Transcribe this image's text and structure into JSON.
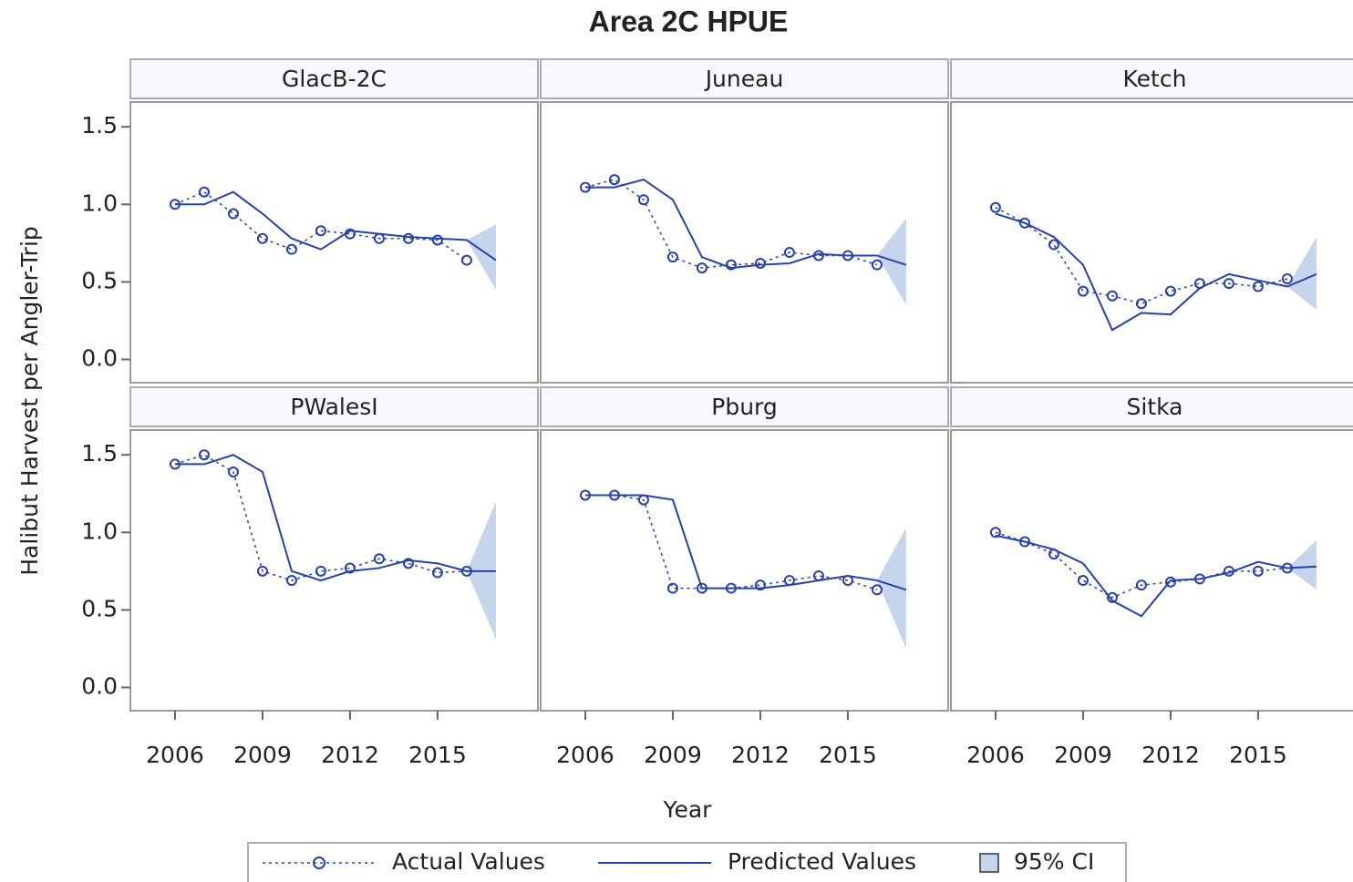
{
  "chart_data": {
    "type": "line",
    "title": "Area 2C HPUE",
    "x_label": "Year",
    "y_label": "Halibut Harvest per Angler-Trip",
    "xlim": [
      2004.47,
      2018.44
    ],
    "ylim": [
      -0.15,
      1.66
    ],
    "xticks": [
      2006,
      2009,
      2012,
      2015
    ],
    "yticks": [
      {
        "value": 0,
        "label": "0.0"
      },
      {
        "value": 0.5,
        "label": "0.5"
      },
      {
        "value": 1,
        "label": "1.0"
      },
      {
        "value": 1.5,
        "label": "1.5"
      }
    ],
    "color": "#2640b0",
    "ci_color": "#c5d6ec",
    "legend": [
      "Actual Values",
      "Predicted Values",
      "95% CI"
    ],
    "legend_position": "bottom",
    "panels": [
      {
        "name": "GlacB-2C",
        "x": [
          2006,
          2007,
          2008,
          2009,
          2010,
          2011,
          2012,
          2013,
          2014,
          2015,
          2016,
          2017
        ],
        "actual": [
          1.0,
          1.08,
          0.94,
          0.78,
          0.71,
          0.83,
          0.81,
          0.78,
          0.78,
          0.77,
          0.64,
          null
        ],
        "predicted": [
          1.0,
          1.0,
          1.08,
          0.94,
          0.78,
          0.71,
          0.83,
          0.81,
          0.79,
          0.78,
          0.77,
          0.64
        ],
        "ci_x": [
          2016,
          2017
        ],
        "ci_lower": [
          0.77,
          0.45
        ],
        "ci_upper": [
          0.77,
          0.87
        ]
      },
      {
        "name": "Juneau",
        "x": [
          2006,
          2007,
          2008,
          2009,
          2010,
          2011,
          2012,
          2013,
          2014,
          2015,
          2016,
          2017
        ],
        "actual": [
          1.11,
          1.16,
          1.03,
          0.66,
          0.59,
          0.61,
          0.62,
          0.69,
          0.67,
          0.67,
          0.61,
          null
        ],
        "predicted": [
          1.11,
          1.11,
          1.16,
          1.03,
          0.66,
          0.59,
          0.61,
          0.62,
          0.68,
          0.67,
          0.67,
          0.61
        ],
        "ci_x": [
          2016,
          2017
        ],
        "ci_lower": [
          0.67,
          0.35
        ],
        "ci_upper": [
          0.67,
          0.91
        ]
      },
      {
        "name": "Ketch",
        "x": [
          2006,
          2007,
          2008,
          2009,
          2010,
          2011,
          2012,
          2013,
          2014,
          2015,
          2016,
          2017
        ],
        "actual": [
          0.98,
          0.88,
          0.74,
          0.44,
          0.41,
          0.36,
          0.44,
          0.49,
          0.49,
          0.47,
          0.52,
          null
        ],
        "predicted": [
          0.94,
          0.88,
          0.79,
          0.61,
          0.19,
          0.3,
          0.29,
          0.46,
          0.55,
          0.51,
          0.47,
          0.55
        ],
        "ci_x": [
          2016,
          2017
        ],
        "ci_lower": [
          0.47,
          0.32
        ],
        "ci_upper": [
          0.47,
          0.79
        ]
      },
      {
        "name": "PWalesI",
        "x": [
          2006,
          2007,
          2008,
          2009,
          2010,
          2011,
          2012,
          2013,
          2014,
          2015,
          2016,
          2017
        ],
        "actual": [
          1.44,
          1.5,
          1.39,
          0.75,
          0.69,
          0.75,
          0.77,
          0.83,
          0.8,
          0.74,
          0.75,
          null
        ],
        "predicted": [
          1.44,
          1.44,
          1.5,
          1.39,
          0.75,
          0.69,
          0.75,
          0.77,
          0.82,
          0.8,
          0.75,
          0.75
        ],
        "ci_x": [
          2016,
          2017
        ],
        "ci_lower": [
          0.75,
          0.31
        ],
        "ci_upper": [
          0.75,
          1.2
        ]
      },
      {
        "name": "Pburg",
        "x": [
          2006,
          2007,
          2008,
          2009,
          2010,
          2011,
          2012,
          2013,
          2014,
          2015,
          2016,
          2017
        ],
        "actual": [
          1.24,
          1.24,
          1.21,
          0.64,
          0.64,
          0.64,
          0.66,
          0.69,
          0.72,
          0.69,
          0.63,
          null
        ],
        "predicted": [
          1.24,
          1.24,
          1.24,
          1.21,
          0.64,
          0.64,
          0.64,
          0.66,
          0.69,
          0.72,
          0.69,
          0.63
        ],
        "ci_x": [
          2016,
          2017
        ],
        "ci_lower": [
          0.69,
          0.25
        ],
        "ci_upper": [
          0.69,
          1.03
        ]
      },
      {
        "name": "Sitka",
        "x": [
          2006,
          2007,
          2008,
          2009,
          2010,
          2011,
          2012,
          2013,
          2014,
          2015,
          2016,
          2017
        ],
        "actual": [
          1.0,
          0.94,
          0.86,
          0.69,
          0.58,
          0.66,
          0.68,
          0.7,
          0.75,
          0.75,
          0.77,
          null
        ],
        "predicted": [
          0.98,
          0.94,
          0.89,
          0.8,
          0.56,
          0.46,
          0.69,
          0.7,
          0.74,
          0.81,
          0.77,
          0.78
        ],
        "ci_x": [
          2016,
          2017
        ],
        "ci_lower": [
          0.77,
          0.63
        ],
        "ci_upper": [
          0.77,
          0.95
        ]
      }
    ]
  }
}
